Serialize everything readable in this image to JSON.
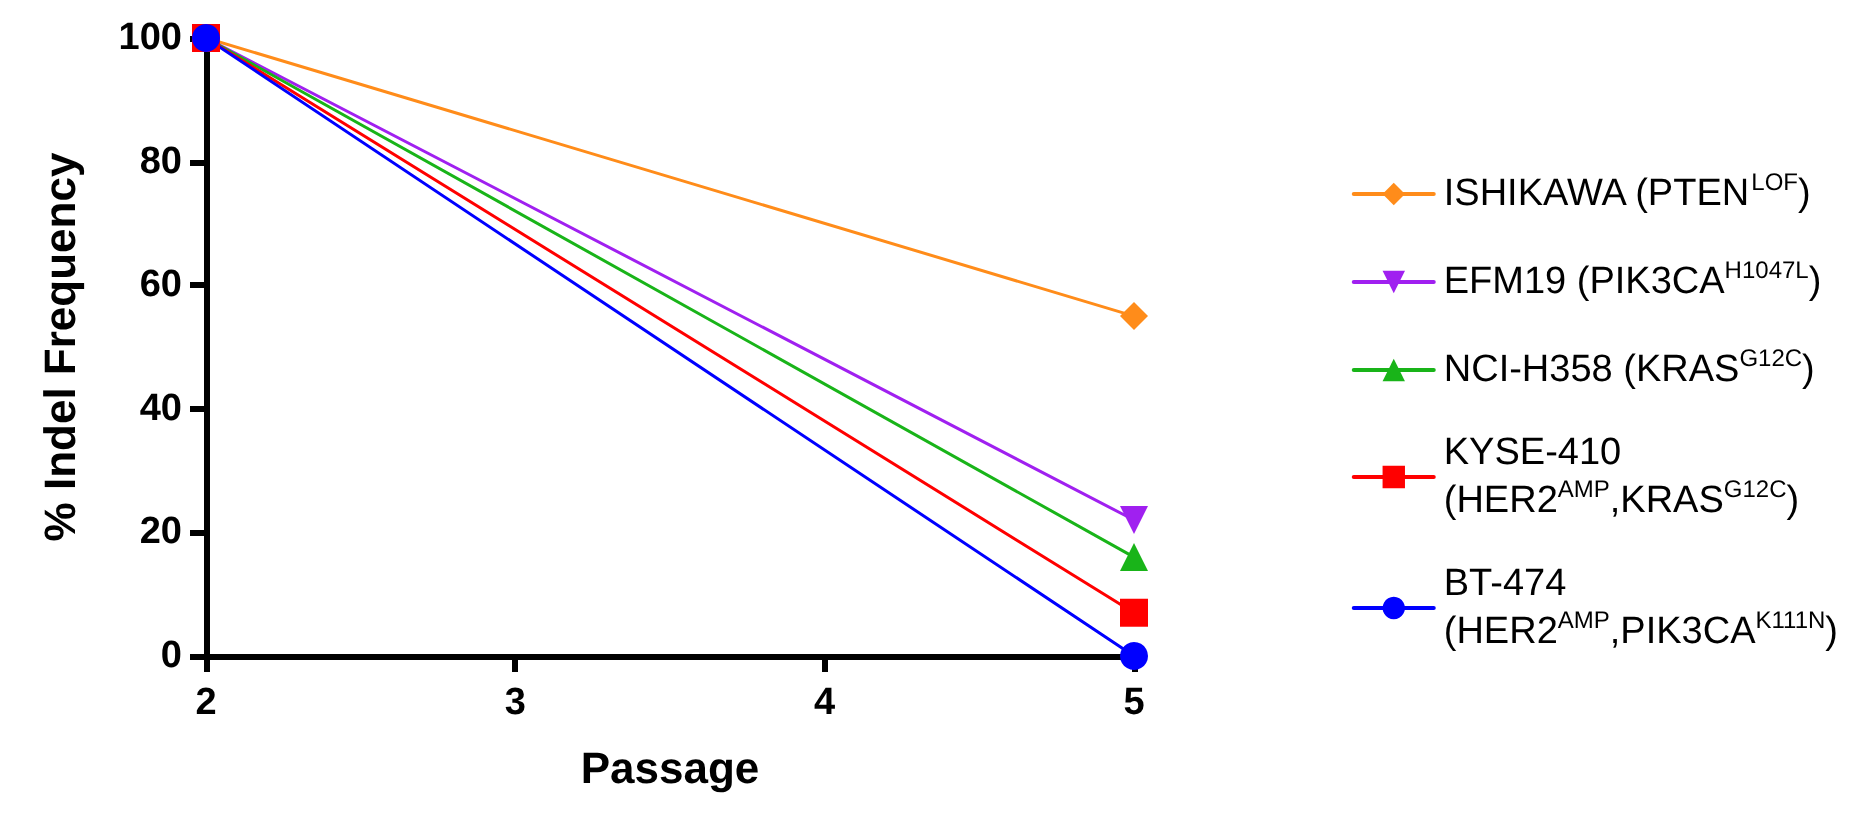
{
  "chart_data": {
    "type": "line",
    "xlabel": "Passage",
    "ylabel": "% Indel Frequency",
    "x": [
      2,
      5
    ],
    "xlim": [
      2,
      5
    ],
    "xticks": [
      2,
      3,
      4,
      5
    ],
    "ylim": [
      0,
      100
    ],
    "yticks": [
      0,
      20,
      40,
      60,
      80,
      100
    ],
    "grid": false,
    "legend": "right",
    "line_style": "solid",
    "series": [
      {
        "name": "ISHIKAWA (PTEN$^{LOF}$)",
        "color": "#ff8c1a",
        "marker": "diamond",
        "values": [
          100,
          55
        ]
      },
      {
        "name": "EFM19 (PIK3CA$^{H1047L}$)",
        "color": "#a020f0",
        "marker": "triangle_down",
        "values": [
          100,
          22
        ]
      },
      {
        "name": "NCI-H358 (KRAS$^{G12C}$)",
        "color": "#19b419",
        "marker": "triangle",
        "values": [
          100,
          16
        ]
      },
      {
        "name": "KYSE-410 (HER2$^{AMP}$,KRAS$^{G12C}$)",
        "color": "#ff0000",
        "marker": "square",
        "values": [
          100,
          7
        ]
      },
      {
        "name": "BT-474 (HER2$^{AMP}$,PIK3CA$^{K111N}$)",
        "color": "#0000ff",
        "marker": "circle",
        "values": [
          100,
          0
        ]
      }
    ]
  }
}
